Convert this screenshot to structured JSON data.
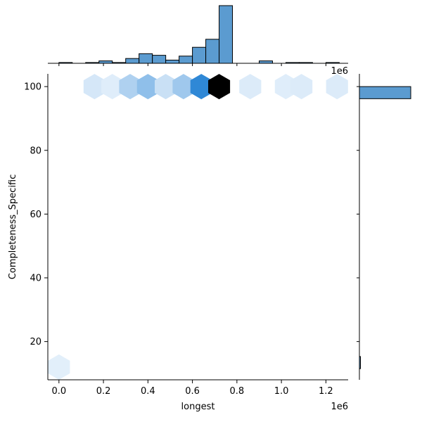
{
  "chart_data": {
    "type": "jointplot-hexbin",
    "xlabel": "longest",
    "ylabel": "Completeness_Specific",
    "x_offset_label": "1e6",
    "top_offset_label": "1e6",
    "xlim": [
      -50000,
      1300000
    ],
    "ylim": [
      8,
      104
    ],
    "x_ticks": [
      0,
      200000,
      400000,
      600000,
      800000,
      1000000,
      1200000
    ],
    "x_tick_labels": [
      "0.0",
      "0.2",
      "0.4",
      "0.6",
      "0.8",
      "1.0",
      "1.2"
    ],
    "y_ticks": [
      20,
      40,
      60,
      80,
      100
    ],
    "y_tick_labels": [
      "20",
      "40",
      "60",
      "80",
      "100"
    ],
    "colors": {
      "bar_fill": "#5b9bd0",
      "bar_edge": "#000000",
      "hex_dark": "#000000",
      "hex_mid": "#2f88d6"
    },
    "hexbins": [
      {
        "x": 160000,
        "y": 100,
        "count": 0.08
      },
      {
        "x": 240000,
        "y": 100,
        "count": 0.05
      },
      {
        "x": 320000,
        "y": 100,
        "count": 0.2
      },
      {
        "x": 400000,
        "y": 100,
        "count": 0.3
      },
      {
        "x": 480000,
        "y": 100,
        "count": 0.12
      },
      {
        "x": 560000,
        "y": 100,
        "count": 0.25
      },
      {
        "x": 640000,
        "y": 100,
        "count": 0.6
      },
      {
        "x": 720000,
        "y": 100,
        "count": 1.0
      },
      {
        "x": 860000,
        "y": 100,
        "count": 0.06
      },
      {
        "x": 1020000,
        "y": 100,
        "count": 0.05
      },
      {
        "x": 1090000,
        "y": 100,
        "count": 0.06
      },
      {
        "x": 1250000,
        "y": 100,
        "count": 0.06
      },
      {
        "x": 0,
        "y": 12,
        "count": 0.04
      }
    ],
    "x_marginal": {
      "bin_edges": [
        0,
        60000,
        120000,
        180000,
        240000,
        300000,
        360000,
        420000,
        480000,
        540000,
        600000,
        660000,
        720000,
        780000,
        840000,
        900000,
        960000,
        1020000,
        1080000,
        1140000,
        1200000,
        1260000
      ],
      "counts": [
        1,
        0,
        1,
        3,
        1,
        6,
        12,
        10,
        4,
        9,
        20,
        30,
        72,
        0,
        0,
        3,
        0,
        1,
        1,
        0,
        1
      ],
      "max": 72
    },
    "y_marginal": {
      "bins": [
        {
          "low": 96.2,
          "high": 100,
          "count": 182
        },
        {
          "low": 11.5,
          "high": 15.3,
          "count": 1
        }
      ],
      "max": 182
    }
  }
}
